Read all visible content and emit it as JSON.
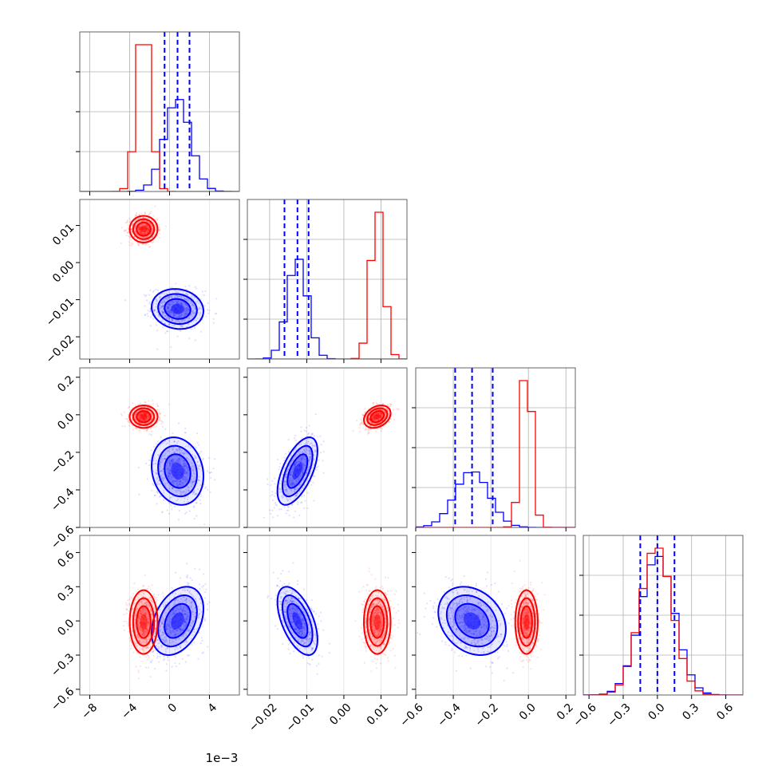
{
  "chart_data": {
    "type": "corner",
    "title": "",
    "grid": true,
    "legend": "none",
    "parameters": [
      {
        "range": [
          -9,
          7
        ],
        "ticks": [
          -8,
          -4,
          0,
          4
        ],
        "tick_labels": [
          "−8",
          "−4",
          "0",
          "4"
        ],
        "offset_label": "1e−3"
      },
      {
        "range": [
          -0.026,
          0.017
        ],
        "ticks": [
          -0.02,
          -0.01,
          0.0,
          0.01
        ],
        "tick_labels": [
          "−0.02",
          "−0.01",
          "0.00",
          "0.01"
        ]
      },
      {
        "range": [
          -0.6,
          0.25
        ],
        "ticks": [
          -0.6,
          -0.4,
          -0.2,
          0.0,
          0.2
        ],
        "tick_labels": [
          "−0.6",
          "−0.4",
          "−0.2",
          "0.0",
          "0.2"
        ]
      },
      {
        "range": [
          -0.65,
          0.75
        ],
        "ticks": [
          -0.6,
          -0.3,
          0.0,
          0.3,
          0.6
        ],
        "tick_labels": [
          "−0.6",
          "−0.3",
          "0.0",
          "0.3",
          "0.6"
        ]
      }
    ],
    "colors": {
      "series_a": "#0000ff",
      "series_b": "#ff0000"
    },
    "series": [
      {
        "color_key": "series_a",
        "mean": [
          0.8,
          -0.0125,
          -0.3,
          0.0
        ],
        "sigma": [
          1.3,
          0.0027,
          0.09,
          0.15
        ],
        "correlations": [
          [
            0,
            1,
            -0.1
          ],
          [
            0,
            2,
            -0.15
          ],
          [
            0,
            3,
            0.35
          ],
          [
            1,
            2,
            0.6
          ],
          [
            1,
            3,
            -0.55
          ],
          [
            2,
            3,
            -0.25
          ]
        ],
        "quantiles": [
          [
            -0.5,
            0.8,
            2.0
          ],
          [
            -0.016,
            -0.0125,
            -0.0095
          ],
          [
            -0.39,
            -0.3,
            -0.19
          ],
          [
            -0.15,
            0.0,
            0.15
          ]
        ]
      },
      {
        "color_key": "series_b",
        "mean": [
          -2.6,
          0.009,
          -0.01,
          -0.01
        ],
        "sigma": [
          0.7,
          0.0018,
          0.03,
          0.14
        ],
        "correlations": [
          [
            0,
            1,
            0.0
          ],
          [
            0,
            2,
            0.0
          ],
          [
            0,
            3,
            0.0
          ],
          [
            1,
            2,
            0.3
          ],
          [
            1,
            3,
            0.0
          ],
          [
            2,
            3,
            0.0
          ]
        ],
        "quantiles": []
      }
    ]
  }
}
